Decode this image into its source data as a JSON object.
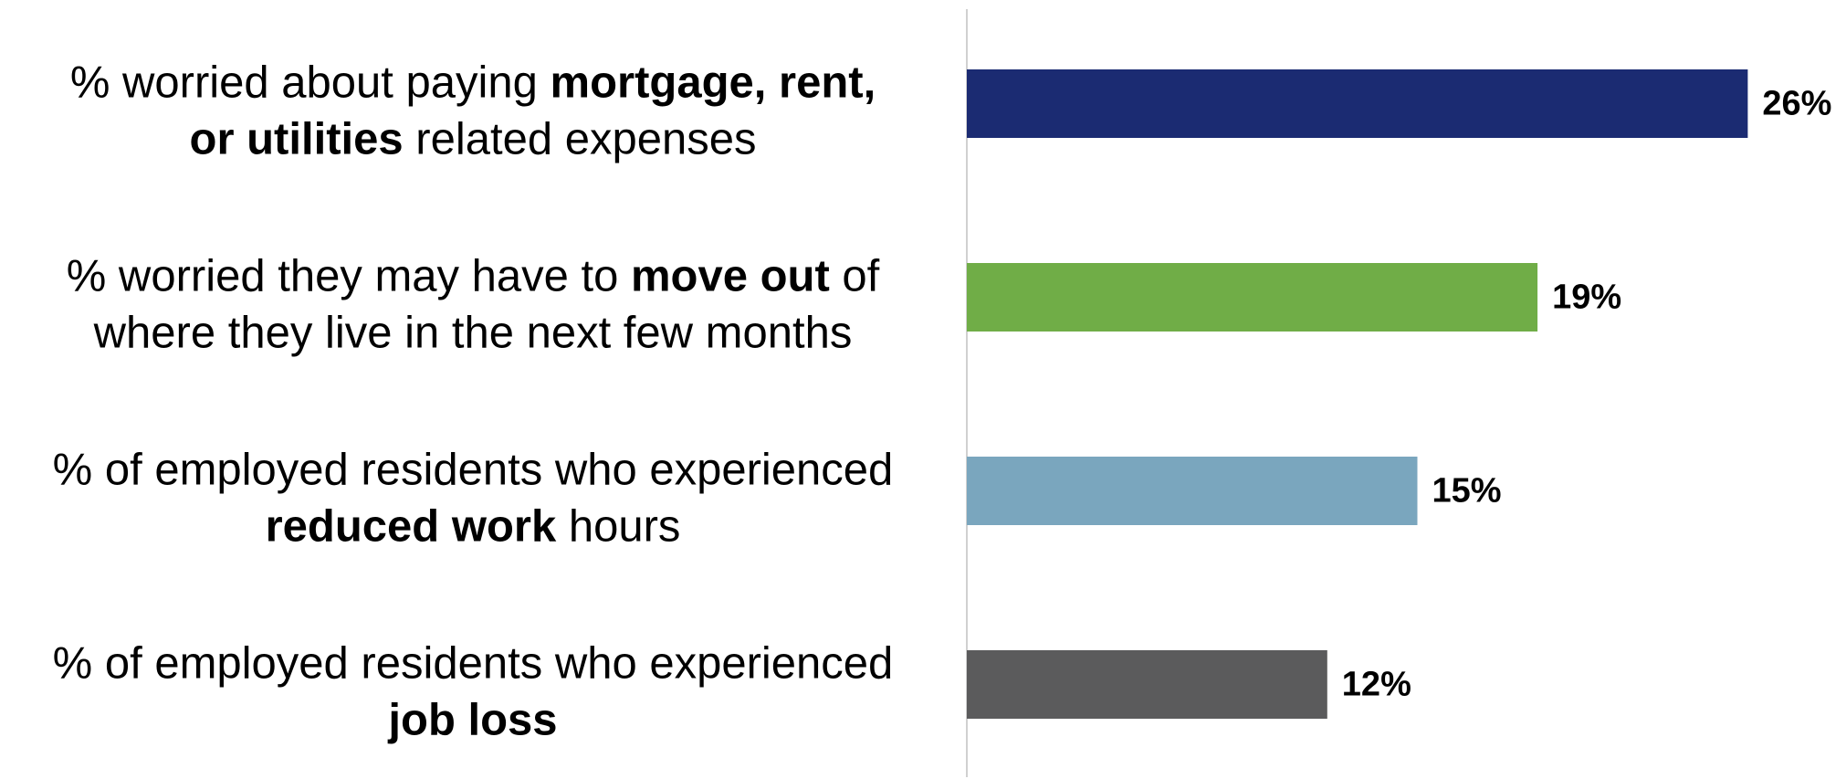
{
  "chart_data": {
    "type": "bar",
    "orientation": "horizontal",
    "categories": [
      [
        [
          {
            "text": "% worried about paying ",
            "bold": false
          },
          {
            "text": "mortgage, rent,",
            "bold": true
          }
        ],
        [
          {
            "text": "or utilities",
            "bold": true
          },
          {
            "text": " related expenses",
            "bold": false
          }
        ]
      ],
      [
        [
          {
            "text": "% worried they may have to ",
            "bold": false
          },
          {
            "text": "move out",
            "bold": true
          },
          {
            "text": " of",
            "bold": false
          }
        ],
        [
          {
            "text": "where they live in the next few months",
            "bold": false
          }
        ]
      ],
      [
        [
          {
            "text": "% of employed residents who experienced",
            "bold": false
          }
        ],
        [
          {
            "text": "reduced work",
            "bold": true
          },
          {
            "text": " hours",
            "bold": false
          }
        ]
      ],
      [
        [
          {
            "text": "% of employed residents who experienced",
            "bold": false
          }
        ],
        [
          {
            "text": "job loss",
            "bold": true
          }
        ]
      ]
    ],
    "values": [
      26,
      19,
      15,
      12
    ],
    "value_labels": [
      "26%",
      "19%",
      "15%",
      "12%"
    ],
    "colors": [
      "#1b2b72",
      "#70ad47",
      "#7aa6be",
      "#5b5b5c"
    ]
  }
}
